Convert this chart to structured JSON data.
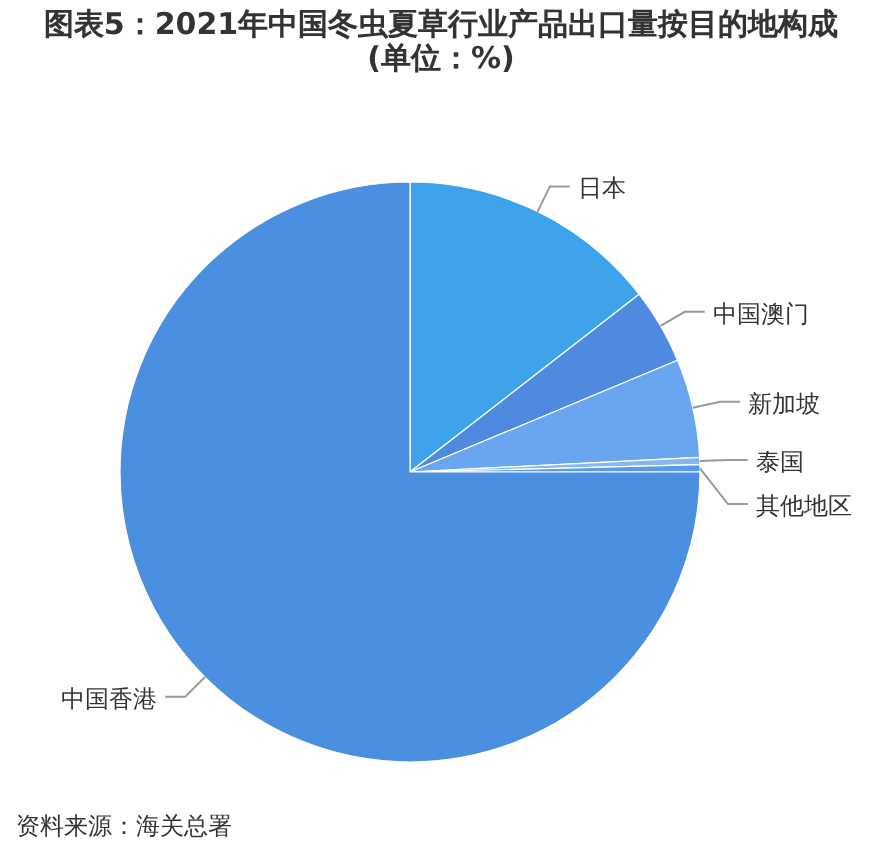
{
  "chart_data": {
    "type": "pie",
    "title": "图表5：2021年中国冬虫夏草行业产品出口量按目的地构成(单位：%)",
    "categories": [
      "日本",
      "中国澳门",
      "新加坡",
      "泰国",
      "其他地区",
      "中国香港"
    ],
    "values": [
      14.5,
      4.2,
      5.5,
      0.4,
      0.4,
      75.0
    ],
    "colors": [
      "#3fa3ec",
      "#4f8ae0",
      "#6aa6ef",
      "#8ab6f0",
      "#5b9be6",
      "#4a8fe0"
    ],
    "annotations": [
      "资料来源：海关总署"
    ]
  }
}
